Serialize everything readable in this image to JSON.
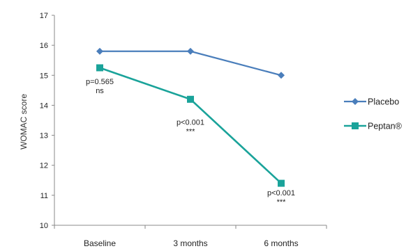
{
  "chart_data": {
    "type": "line",
    "title": "",
    "xlabel": "",
    "ylabel": "WOMAC score",
    "ylim": [
      10,
      17
    ],
    "yticks": [
      10,
      11,
      12,
      13,
      14,
      15,
      16,
      17
    ],
    "categories": [
      "Baseline",
      "3 months",
      "6 months"
    ],
    "series": [
      {
        "name": "Placebo",
        "values": [
          15.8,
          15.8,
          15.0
        ],
        "color": "#4a7ebb",
        "marker": "diamond"
      },
      {
        "name": "Peptan®",
        "values": [
          15.25,
          14.2,
          11.4
        ],
        "color": "#1aa39a",
        "marker": "square"
      }
    ],
    "annotations": [
      {
        "category": "Baseline",
        "y": 14.7,
        "text": "p=0.565",
        "sub": "ns"
      },
      {
        "category": "3 months",
        "y": 13.35,
        "text": "p<0.001",
        "sub": "***"
      },
      {
        "category": "6 months",
        "y": 11.0,
        "text": "p<0.001",
        "sub": "***"
      }
    ],
    "legend": "right",
    "grid": false
  }
}
